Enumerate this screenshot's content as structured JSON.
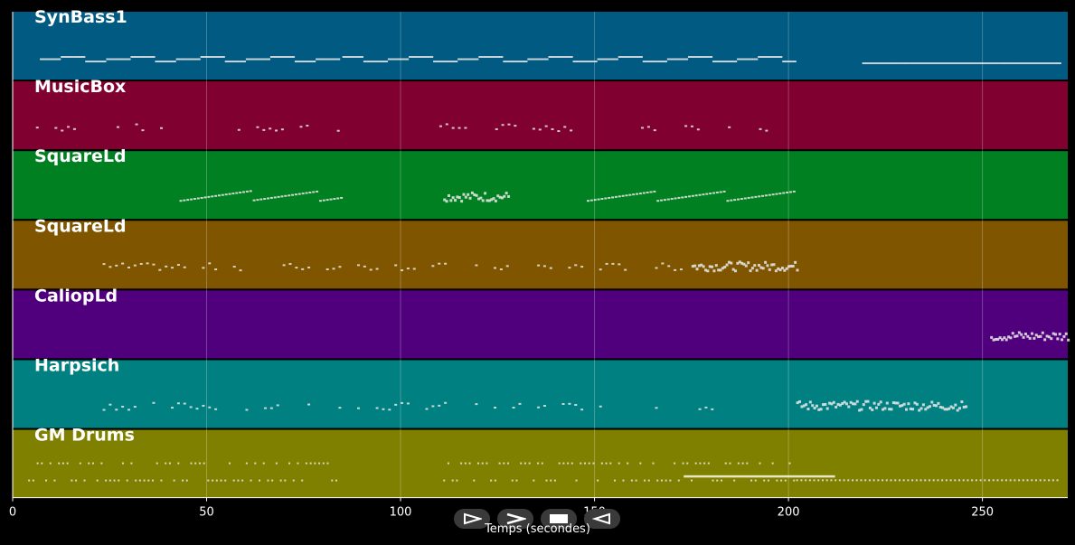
{
  "chart_data": {
    "type": "piano-roll",
    "xlabel": "Temps (secondes)",
    "xlim": [
      0,
      272
    ],
    "xticks": [
      0,
      50,
      100,
      150,
      200,
      250
    ],
    "grid": true,
    "tracks": [
      {
        "name": "SynBass1",
        "color": "#005a82",
        "segments": [
          [
            7,
            84,
            "stepped"
          ],
          [
            85,
            202,
            "stepped"
          ],
          [
            219,
            270,
            "flat"
          ]
        ]
      },
      {
        "name": "MusicBox",
        "color": "#800030",
        "segments": [
          [
            6,
            40,
            "sparse"
          ],
          [
            58,
            84,
            "sparse"
          ],
          [
            110,
            145,
            "sparse"
          ],
          [
            162,
            201,
            "sparse"
          ]
        ]
      },
      {
        "name": "SquareLd",
        "color": "#008020",
        "segments": [
          [
            43,
            85,
            "rising"
          ],
          [
            111,
            128,
            "dense"
          ],
          [
            148,
            202,
            "rising"
          ]
        ]
      },
      {
        "name": "SquareLd",
        "color": "#7f5500",
        "segments": [
          [
            20,
            175,
            "sparse"
          ],
          [
            175,
            202,
            "dense"
          ]
        ]
      },
      {
        "name": "CaliopLd",
        "color": "#50007d",
        "segments": [
          [
            252,
            272,
            "dense"
          ]
        ]
      },
      {
        "name": "Harpsich",
        "color": "#008080",
        "segments": [
          [
            20,
            180,
            "sparse"
          ],
          [
            202,
            246,
            "dense"
          ]
        ]
      },
      {
        "name": "GM Drums",
        "color": "#808000",
        "segments": [
          [
            4,
            84,
            "drums"
          ],
          [
            111,
            202,
            "drums"
          ],
          [
            202,
            270,
            "drums-low"
          ]
        ]
      }
    ]
  },
  "controls": {
    "icons": [
      "play-outline-icon",
      "next-icon",
      "stop-icon",
      "rewind-icon"
    ]
  }
}
